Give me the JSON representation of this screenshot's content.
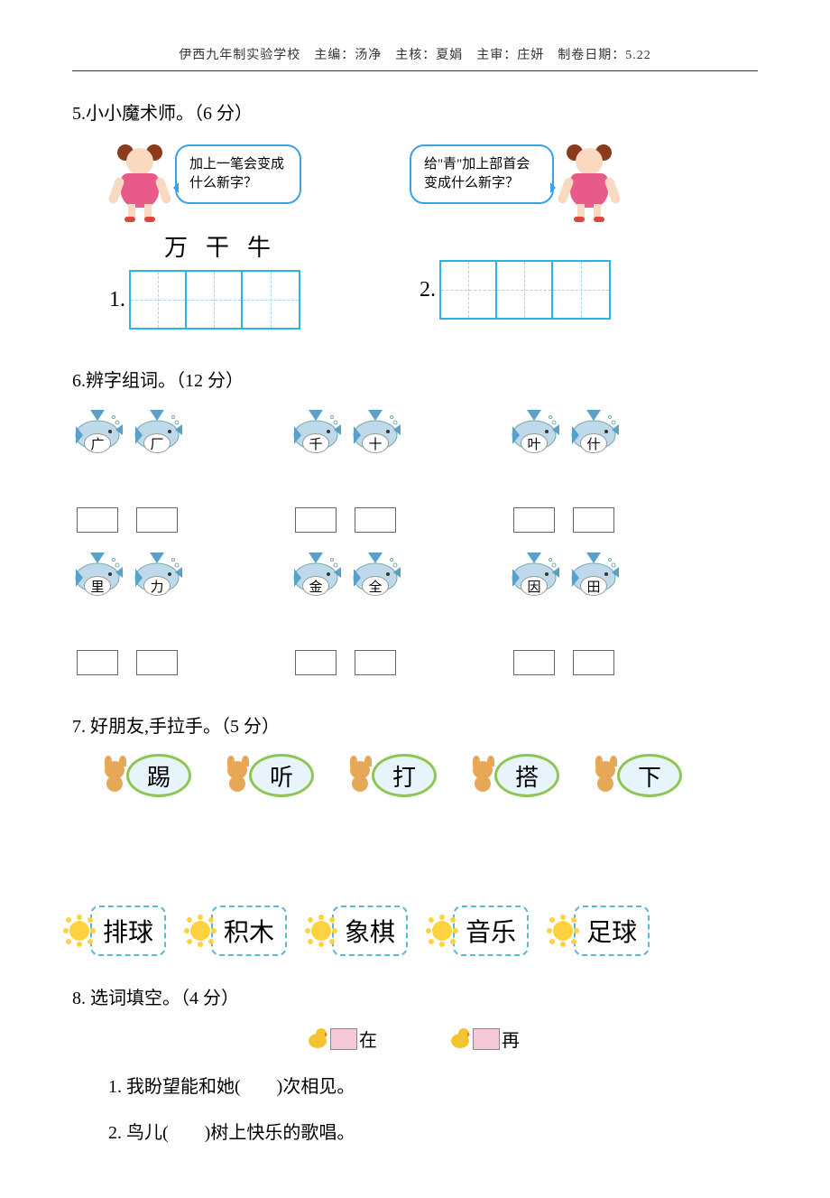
{
  "header": "伊西九年制实验学校　主编：汤净　主核：夏娟　主审：庄妍　制卷日期：5.22",
  "q5": {
    "title": "5.小小魔术师。（6 分）",
    "bubble_left": "加上一笔会变成什么新字？",
    "bubble_right": "给\"青\"加上部首会变成什么新字？",
    "left_chars": [
      "万",
      "干",
      "牛"
    ],
    "num1": "1.",
    "num2": "2."
  },
  "q6": {
    "title": "6.辨字组词。（12 分）",
    "pairs": [
      [
        "广",
        "厂"
      ],
      [
        "千",
        "十"
      ],
      [
        "叶",
        "什"
      ],
      [
        "里",
        "力"
      ],
      [
        "金",
        "全"
      ],
      [
        "因",
        "田"
      ]
    ]
  },
  "q7": {
    "title": "7.  好朋友,手拉手。（5 分）",
    "top": [
      "踢",
      "听",
      "打",
      "搭",
      "下"
    ],
    "bottom": [
      "排球",
      "积木",
      "象棋",
      "音乐",
      "足球"
    ]
  },
  "q8": {
    "title": "8.  选词填空。（4 分）",
    "choices": [
      "在",
      "再"
    ],
    "sentences": [
      "1. 我盼望能和她(　　)次相见。",
      "2. 鸟儿(　　)树上快乐的歌唱。"
    ]
  },
  "colors": {
    "cyan": "#2bb4e6",
    "green": "#8fc651",
    "dash": "#5bb8d8",
    "fish_body": "#bdd9ea",
    "fish_fin": "#5aa0c8"
  }
}
